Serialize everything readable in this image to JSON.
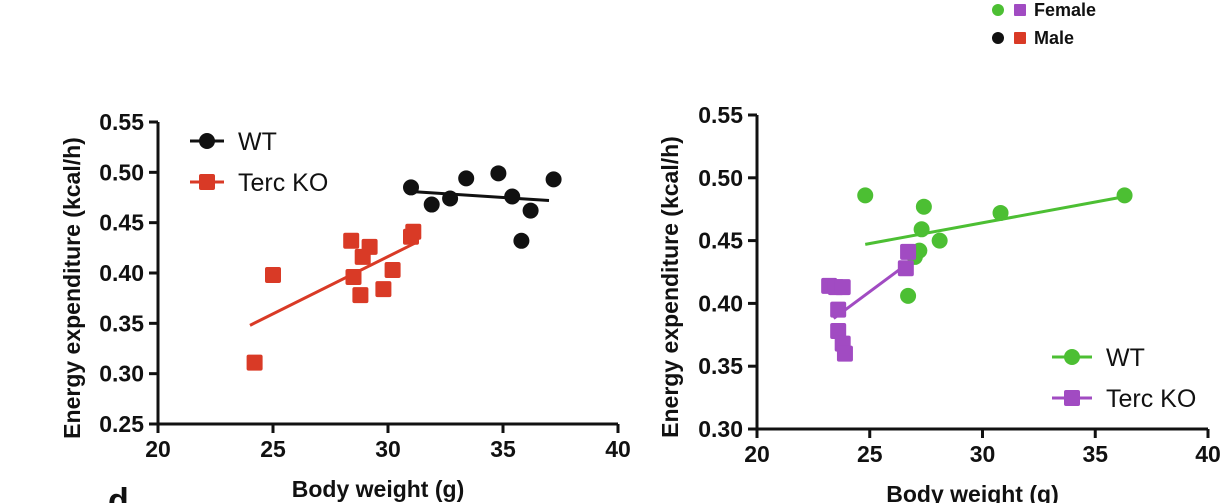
{
  "colors": {
    "wt_male": "#111111",
    "ko_male": "#d93a26",
    "wt_female": "#4cbf33",
    "ko_female": "#a14bc2",
    "axis": "#111111"
  },
  "top_legend": [
    {
      "label": "Female",
      "marker_colors": [
        "#4cbf33",
        "#a14bc2"
      ]
    },
    {
      "label": "Male",
      "marker_colors": [
        "#111111",
        "#d93a26"
      ]
    }
  ],
  "panel_letter": "d",
  "chart_data": [
    {
      "type": "scatter",
      "name": "male-panel",
      "title": "",
      "xlabel": "Body weight (g)",
      "ylabel": "Energy expenditure (kcal/h)",
      "xlim": [
        20,
        40
      ],
      "ylim": [
        0.25,
        0.55
      ],
      "xticks": [
        20,
        25,
        30,
        35,
        40
      ],
      "yticks": [
        0.25,
        0.3,
        0.35,
        0.4,
        0.45,
        0.5,
        0.55
      ],
      "x_tick_labels": [
        "20",
        "25",
        "30",
        "35",
        "40"
      ],
      "y_tick_labels": [
        "0.25",
        "0.30",
        "0.35",
        "0.40",
        "0.45",
        "0.50",
        "0.55"
      ],
      "legend_position": "top-left",
      "series": [
        {
          "name": "WT",
          "marker": "circle",
          "color": "#111111",
          "points": [
            [
              31.0,
              0.485
            ],
            [
              31.9,
              0.468
            ],
            [
              32.7,
              0.474
            ],
            [
              33.4,
              0.494
            ],
            [
              34.8,
              0.499
            ],
            [
              35.4,
              0.476
            ],
            [
              35.8,
              0.432
            ],
            [
              36.2,
              0.462
            ],
            [
              37.2,
              0.493
            ]
          ],
          "fit": [
            [
              31.0,
              0.481
            ],
            [
              37.0,
              0.472
            ]
          ]
        },
        {
          "name": "Terc KO",
          "marker": "square",
          "color": "#d93a26",
          "points": [
            [
              24.2,
              0.311
            ],
            [
              25.0,
              0.398
            ],
            [
              28.4,
              0.432
            ],
            [
              28.5,
              0.396
            ],
            [
              28.8,
              0.378
            ],
            [
              28.9,
              0.416
            ],
            [
              29.2,
              0.426
            ],
            [
              29.8,
              0.384
            ],
            [
              30.2,
              0.403
            ],
            [
              31.0,
              0.436
            ],
            [
              31.1,
              0.441
            ]
          ],
          "fit": [
            [
              24.0,
              0.348
            ],
            [
              31.2,
              0.43
            ]
          ]
        }
      ]
    },
    {
      "type": "scatter",
      "name": "female-panel",
      "title": "",
      "xlabel": "Body weight (g)",
      "ylabel": "Energy expenditure (kcal/h)",
      "xlim": [
        20,
        40
      ],
      "ylim": [
        0.3,
        0.55
      ],
      "xticks": [
        20,
        25,
        30,
        35,
        40
      ],
      "yticks": [
        0.3,
        0.35,
        0.4,
        0.45,
        0.5,
        0.55
      ],
      "x_tick_labels": [
        "20",
        "25",
        "30",
        "35",
        "40"
      ],
      "y_tick_labels": [
        "0.30",
        "0.35",
        "0.40",
        "0.45",
        "0.50",
        "0.55"
      ],
      "legend_position": "bottom-right",
      "series": [
        {
          "name": "WT",
          "marker": "circle",
          "color": "#4cbf33",
          "points": [
            [
              24.8,
              0.486
            ],
            [
              26.7,
              0.406
            ],
            [
              27.0,
              0.437
            ],
            [
              27.2,
              0.442
            ],
            [
              27.3,
              0.459
            ],
            [
              27.4,
              0.477
            ],
            [
              28.1,
              0.45
            ],
            [
              30.8,
              0.472
            ],
            [
              36.3,
              0.486
            ]
          ],
          "fit": [
            [
              24.8,
              0.447
            ],
            [
              36.3,
              0.485
            ]
          ]
        },
        {
          "name": "Terc KO",
          "marker": "square",
          "color": "#a14bc2",
          "points": [
            [
              23.2,
              0.414
            ],
            [
              23.5,
              0.413
            ],
            [
              23.6,
              0.395
            ],
            [
              23.6,
              0.378
            ],
            [
              23.8,
              0.413
            ],
            [
              23.8,
              0.368
            ],
            [
              23.9,
              0.36
            ],
            [
              26.6,
              0.428
            ],
            [
              26.7,
              0.441
            ]
          ],
          "fit": [
            [
              23.4,
              0.388
            ],
            [
              26.7,
              0.432
            ]
          ]
        }
      ]
    }
  ]
}
